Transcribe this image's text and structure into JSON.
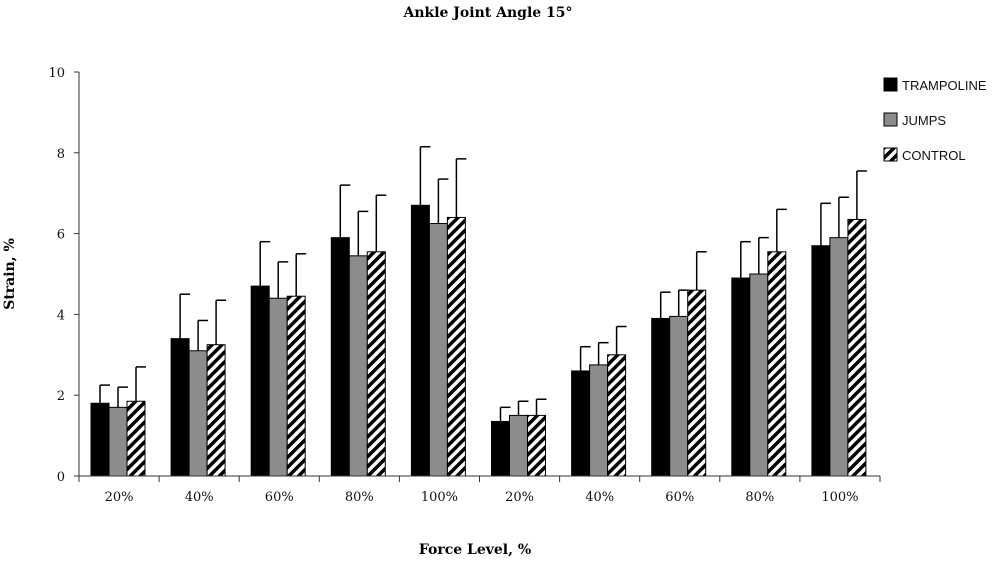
{
  "chart_data": {
    "type": "bar",
    "title": "Ankle Joint Angle 15°",
    "xlabel": "Force Level, %",
    "ylabel": "Strain, %",
    "ylim": [
      0,
      10
    ],
    "yticks": [
      0,
      2,
      4,
      6,
      8,
      10
    ],
    "grid": false,
    "legend_position": "right",
    "categories": [
      "20%",
      "40%",
      "60%",
      "80%",
      "100%",
      "20%",
      "40%",
      "60%",
      "80%",
      "100%"
    ],
    "series": [
      {
        "name": "TRAMPOLINE",
        "fill": "#000000",
        "values": [
          1.8,
          3.4,
          4.7,
          5.9,
          6.7,
          1.35,
          2.6,
          3.9,
          4.9,
          5.7
        ],
        "errors": [
          0.45,
          1.1,
          1.1,
          1.3,
          1.45,
          0.35,
          0.6,
          0.65,
          0.9,
          1.05
        ]
      },
      {
        "name": "JUMPS",
        "fill": "#8c8c8c",
        "values": [
          1.7,
          3.1,
          4.4,
          5.45,
          6.25,
          1.5,
          2.75,
          3.95,
          5.0,
          5.9
        ],
        "errors": [
          0.5,
          0.75,
          0.9,
          1.1,
          1.1,
          0.35,
          0.55,
          0.65,
          0.9,
          1.0
        ]
      },
      {
        "name": "CONTROL",
        "fill": "hatch",
        "values": [
          1.85,
          3.25,
          4.45,
          5.55,
          6.4,
          1.5,
          3.0,
          4.6,
          5.55,
          6.35
        ],
        "errors": [
          0.85,
          1.1,
          1.05,
          1.4,
          1.45,
          0.4,
          0.7,
          0.95,
          1.05,
          1.2
        ]
      }
    ]
  }
}
